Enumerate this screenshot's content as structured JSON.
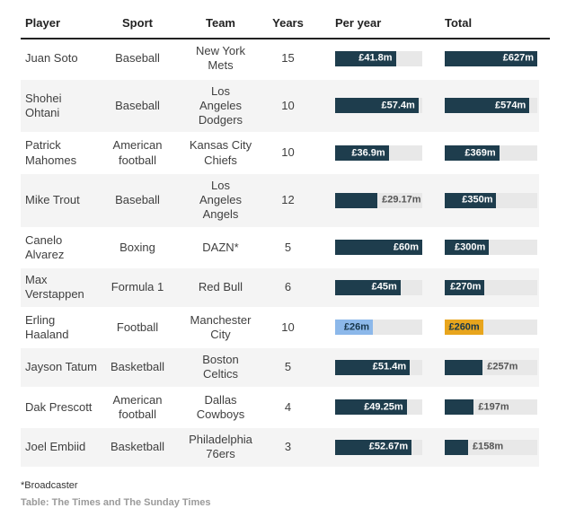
{
  "colors": {
    "bar_navy": "#1e3d4d",
    "bar_blue": "#8cb8ea",
    "bar_gold": "#e8a51d",
    "track": "#e8e8e8",
    "row_alt": "#f4f4f4",
    "label_on_navy": "#ffffff",
    "label_on_light": "#17364a",
    "label_outside": "#555555"
  },
  "table": {
    "columns": [
      "Player",
      "Sport",
      "Team",
      "Years",
      "Per year",
      "Total"
    ],
    "bar_config": {
      "per_year": {
        "max": 60
      },
      "total": {
        "max": 627
      }
    },
    "rows": [
      {
        "player": "Juan Soto",
        "sport": "Baseball",
        "team": "New York\nMets",
        "years": "15",
        "per_year": {
          "label": "£41.8m",
          "value": 41.8,
          "color": "navy",
          "inside": true
        },
        "total": {
          "label": "£627m",
          "value": 627,
          "color": "navy",
          "inside": true
        }
      },
      {
        "player": "Shohei Ohtani",
        "sport": "Baseball",
        "team": "Los\nAngeles\nDodgers",
        "years": "10",
        "per_year": {
          "label": "£57.4m",
          "value": 57.4,
          "color": "navy",
          "inside": true
        },
        "total": {
          "label": "£574m",
          "value": 574,
          "color": "navy",
          "inside": true
        }
      },
      {
        "player": "Patrick Mahomes",
        "sport": "American football",
        "team": "Kansas City\nChiefs",
        "years": "10",
        "per_year": {
          "label": "£36.9m",
          "value": 36.9,
          "color": "navy",
          "inside": true
        },
        "total": {
          "label": "£369m",
          "value": 369,
          "color": "navy",
          "inside": true
        }
      },
      {
        "player": "Mike Trout",
        "sport": "Baseball",
        "team": "Los\nAngeles\nAngels",
        "years": "12",
        "per_year": {
          "label": "£29.17m",
          "value": 29.17,
          "color": "navy",
          "inside": false
        },
        "total": {
          "label": "£350m",
          "value": 350,
          "color": "navy",
          "inside": true
        }
      },
      {
        "player": "Canelo Alvarez",
        "sport": "Boxing",
        "team": "DAZN*",
        "years": "5",
        "per_year": {
          "label": "£60m",
          "value": 60,
          "color": "navy",
          "inside": true
        },
        "total": {
          "label": "£300m",
          "value": 300,
          "color": "navy",
          "inside": true
        }
      },
      {
        "player": "Max Verstappen",
        "sport": "Formula 1",
        "team": "Red Bull",
        "years": "6",
        "per_year": {
          "label": "£45m",
          "value": 45,
          "color": "navy",
          "inside": true
        },
        "total": {
          "label": "£270m",
          "value": 270,
          "color": "navy",
          "inside": true
        }
      },
      {
        "player": "Erling Haaland",
        "sport": "Football",
        "team": "Manchester\nCity",
        "years": "10",
        "per_year": {
          "label": "£26m",
          "value": 26,
          "color": "blue",
          "inside": true
        },
        "total": {
          "label": "£260m",
          "value": 260,
          "color": "gold",
          "inside": true
        }
      },
      {
        "player": "Jayson Tatum",
        "sport": "Basketball",
        "team": "Boston\nCeltics",
        "years": "5",
        "per_year": {
          "label": "£51.4m",
          "value": 51.4,
          "color": "navy",
          "inside": true
        },
        "total": {
          "label": "£257m",
          "value": 257,
          "color": "navy",
          "inside": false
        }
      },
      {
        "player": "Dak Prescott",
        "sport": "American football",
        "team": "Dallas\nCowboys",
        "years": "4",
        "per_year": {
          "label": "£49.25m",
          "value": 49.25,
          "color": "navy",
          "inside": true
        },
        "total": {
          "label": "£197m",
          "value": 197,
          "color": "navy",
          "inside": false
        }
      },
      {
        "player": "Joel Embiid",
        "sport": "Basketball",
        "team": "Philadelphia\n76ers",
        "years": "3",
        "per_year": {
          "label": "£52.67m",
          "value": 52.67,
          "color": "navy",
          "inside": true
        },
        "total": {
          "label": "£158m",
          "value": 158,
          "color": "navy",
          "inside": false
        }
      }
    ]
  },
  "footnote": "*Broadcaster",
  "credit": "Table: The Times and The Sunday Times",
  "chart_data": {
    "type": "table",
    "title": "",
    "columns": [
      "Player",
      "Sport",
      "Team",
      "Years",
      "Per year (£m)",
      "Total (£m)"
    ],
    "bar_columns": {
      "per_year": {
        "max": 60,
        "unit": "£m",
        "style": "bar"
      },
      "total": {
        "max": 627,
        "unit": "£m",
        "style": "bar"
      }
    },
    "highlight_row": "Erling Haaland",
    "rows": [
      [
        "Juan Soto",
        "Baseball",
        "New York Mets",
        15,
        41.8,
        627
      ],
      [
        "Shohei Ohtani",
        "Baseball",
        "Los Angeles Dodgers",
        10,
        57.4,
        574
      ],
      [
        "Patrick Mahomes",
        "American football",
        "Kansas City Chiefs",
        10,
        36.9,
        369
      ],
      [
        "Mike Trout",
        "Baseball",
        "Los Angeles Angels",
        12,
        29.17,
        350
      ],
      [
        "Canelo Alvarez",
        "Boxing",
        "DAZN*",
        5,
        60,
        300
      ],
      [
        "Max Verstappen",
        "Formula 1",
        "Red Bull",
        6,
        45,
        270
      ],
      [
        "Erling Haaland",
        "Football",
        "Manchester City",
        10,
        26,
        260
      ],
      [
        "Jayson Tatum",
        "Basketball",
        "Boston Celtics",
        5,
        51.4,
        257
      ],
      [
        "Dak Prescott",
        "American football",
        "Dallas Cowboys",
        4,
        49.25,
        197
      ],
      [
        "Joel Embiid",
        "Basketball",
        "Philadelphia 76ers",
        3,
        52.67,
        158
      ]
    ]
  }
}
